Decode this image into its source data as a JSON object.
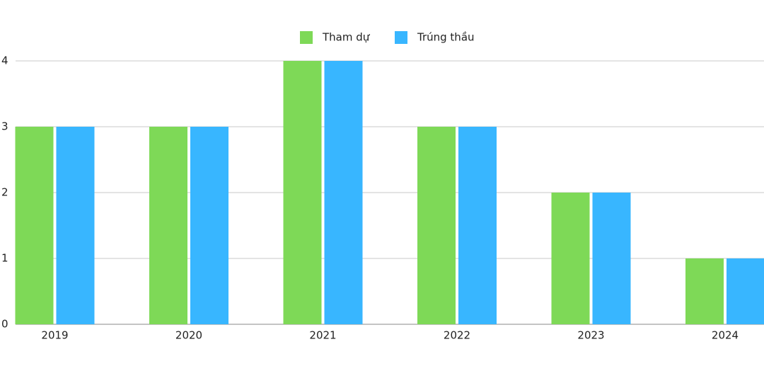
{
  "chart_data": {
    "type": "bar",
    "categories": [
      "2019",
      "2020",
      "2021",
      "2022",
      "2023",
      "2024"
    ],
    "series": [
      {
        "name": "Tham dự",
        "color": "#7ed957",
        "values": [
          3,
          3,
          4,
          3,
          2,
          1
        ]
      },
      {
        "name": "Trúng thầu",
        "color": "#38b6ff",
        "values": [
          3,
          3,
          4,
          3,
          2,
          1
        ]
      }
    ],
    "ylim": [
      0,
      4
    ],
    "yticks": [
      0,
      1,
      2,
      3,
      4
    ],
    "grid": true,
    "legend": "top"
  }
}
